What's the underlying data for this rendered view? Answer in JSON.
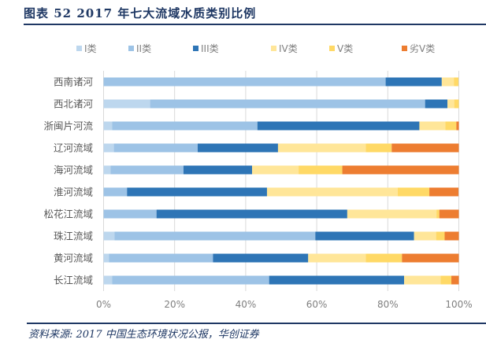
{
  "title": "图表 52   2017 年七大流域水质类别比例",
  "source": "资料来源: 2017 中国生态环境状况公报，华创证券",
  "chart_data": {
    "type": "bar",
    "orientation": "horizontal",
    "stacked": "percent",
    "title": "2017 年七大流域水质类别比例",
    "xlabel": "",
    "ylabel": "",
    "xlim": [
      0,
      100
    ],
    "xticks": [
      "0%",
      "20%",
      "40%",
      "60%",
      "80%",
      "100%"
    ],
    "grid": true,
    "legend_position": "top",
    "categories": [
      "西南诸河",
      "西北诸河",
      "浙闽片河流",
      "辽河流域",
      "海河流域",
      "淮河流域",
      "松花江流域",
      "珠江流域",
      "黄河流域",
      "长江流域"
    ],
    "series": [
      {
        "name": "I类",
        "color": "#bdd7ee",
        "values": [
          0,
          13.1,
          2.4,
          2.9,
          2.0,
          0,
          0,
          3.1,
          1.5,
          2.4
        ]
      },
      {
        "name": "II类",
        "color": "#9dc3e6",
        "values": [
          79.4,
          77.4,
          40.9,
          23.6,
          20.5,
          6.6,
          14.9,
          56.5,
          29.3,
          44.2
        ]
      },
      {
        "name": "III类",
        "color": "#2e75b6",
        "values": [
          15.8,
          6.3,
          45.6,
          22.6,
          19.3,
          39.4,
          53.7,
          27.8,
          26.8,
          38.0
        ]
      },
      {
        "name": "IV类",
        "color": "#ffe699",
        "values": [
          3.4,
          1.9,
          7.3,
          24.7,
          13.1,
          36.8,
          25.1,
          6.2,
          16.2,
          10.3
        ]
      },
      {
        "name": "V类",
        "color": "#ffd966",
        "values": [
          1.3,
          1.3,
          3.1,
          7.3,
          12.3,
          8.9,
          0.8,
          2.4,
          10.2,
          3.0
        ]
      },
      {
        "name": "劣V类",
        "color": "#ed7d31",
        "values": [
          0,
          0,
          0.7,
          18.9,
          32.8,
          8.2,
          5.5,
          4.0,
          16.0,
          2.1
        ]
      }
    ]
  }
}
